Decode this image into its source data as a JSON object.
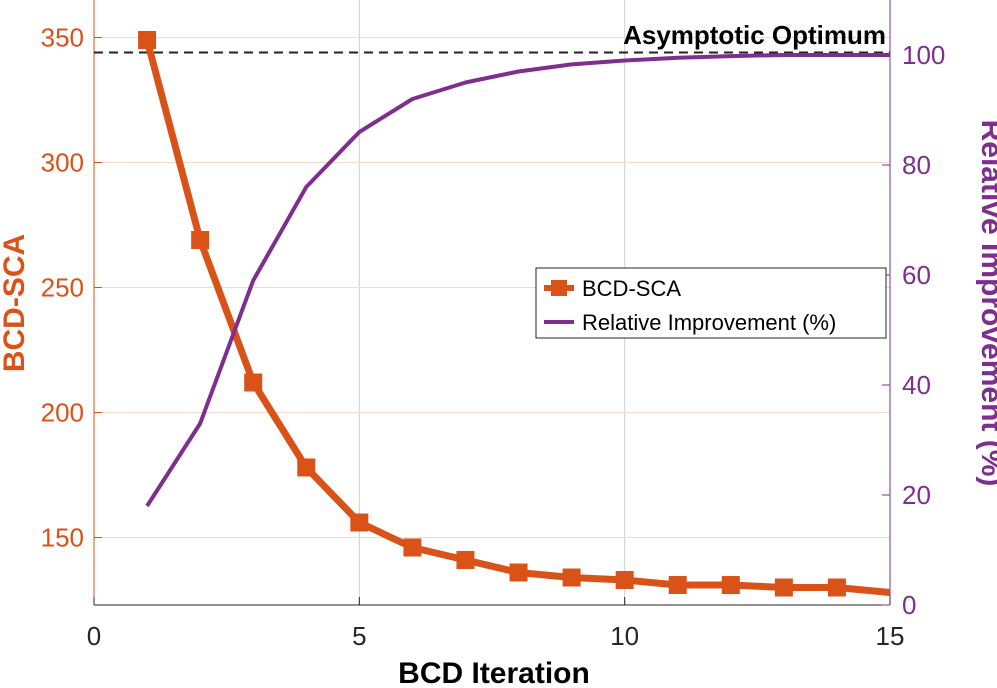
{
  "chart_data": {
    "type": "line",
    "xlabel": "BCD Iteration",
    "ylabel_left": "BCD-SCA",
    "ylabel_right": "Relative Improvement (%)",
    "xlim": [
      0,
      15
    ],
    "ylim_left": [
      123,
      365
    ],
    "ylim_right": [
      0,
      110
    ],
    "xticks": [
      0,
      5,
      10,
      15
    ],
    "yticks_left": [
      150,
      200,
      250,
      300,
      350
    ],
    "yticks_right": [
      0,
      20,
      40,
      60,
      80,
      100
    ],
    "grid": "vertical and horizontal major gridlines",
    "legend_position": "center-right",
    "annotation": {
      "text": "Asymptotic Optimum",
      "y_left": 344
    },
    "colors": {
      "left": "#d95319",
      "right": "#7e2f8e",
      "grid": "#cfcfcf",
      "hgrid": "#f6d9c8",
      "axis": "#262626"
    },
    "series": [
      {
        "name": "BCD-SCA",
        "axis": "left",
        "marker": "square",
        "x": [
          1,
          2,
          3,
          4,
          5,
          6,
          7,
          8,
          9,
          10,
          11,
          12,
          13,
          14,
          15
        ],
        "values": [
          349,
          269,
          212,
          178,
          156,
          146,
          141,
          136,
          134,
          133,
          131,
          131,
          130,
          130,
          128
        ]
      },
      {
        "name": "Relative Improvement (%)",
        "axis": "right",
        "marker": "none",
        "x": [
          1,
          2,
          3,
          4,
          5,
          6,
          7,
          8,
          9,
          10,
          11,
          12,
          13,
          14,
          15
        ],
        "values": [
          18,
          33,
          59,
          76,
          86,
          92,
          95,
          97,
          98.3,
          99,
          99.5,
          99.8,
          100,
          100,
          100
        ]
      }
    ]
  }
}
